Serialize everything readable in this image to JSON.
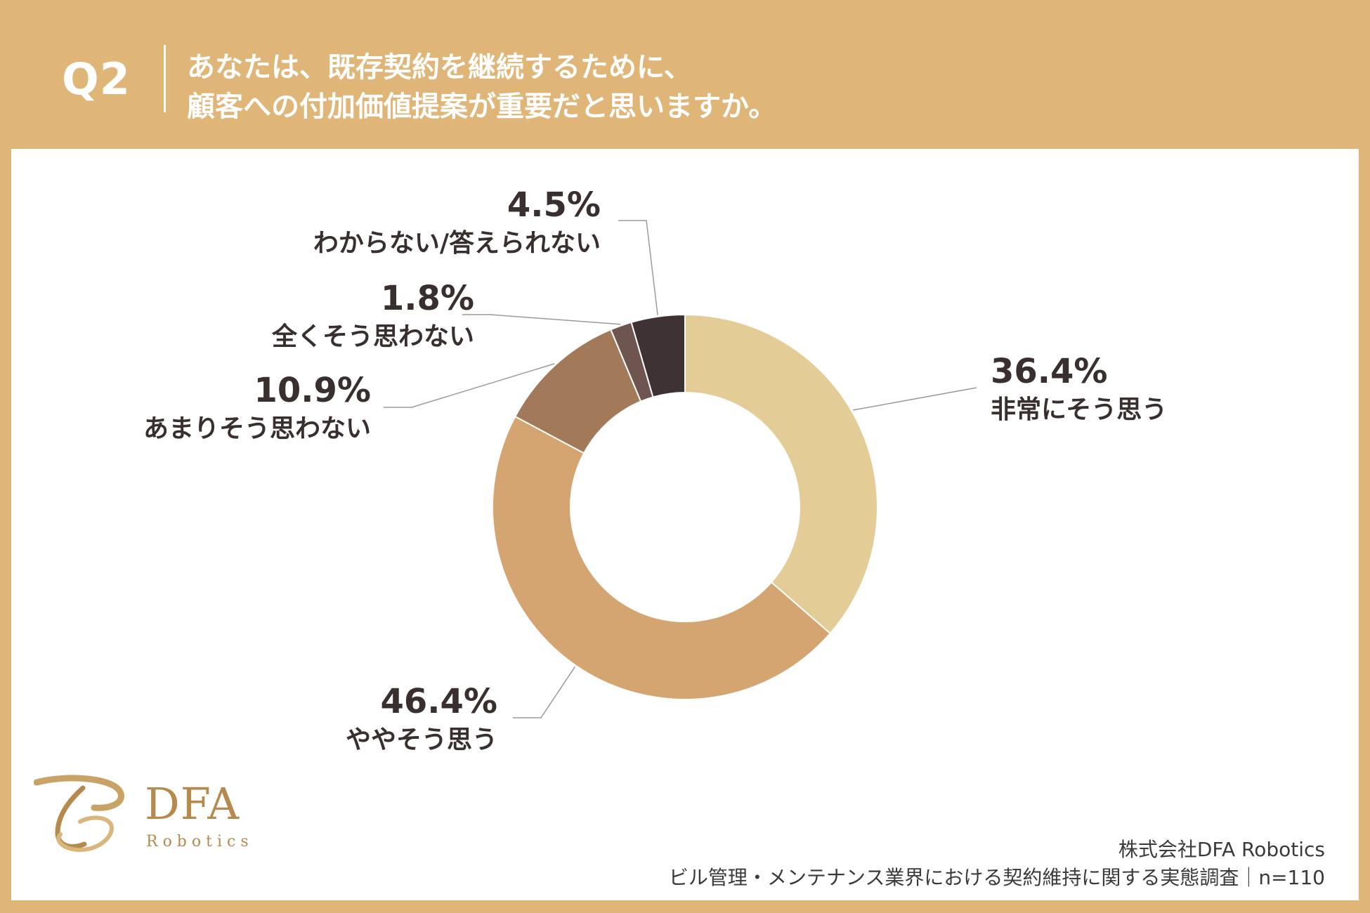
{
  "header": {
    "question_number": "Q2",
    "question_line1": "あなたは、既存契約を継続するために、",
    "question_line2": "顧客への付加価値提案が重要だと思いますか。"
  },
  "chart_data": {
    "type": "pie",
    "donut": true,
    "title": "",
    "slices": [
      {
        "label": "非常にそう思う",
        "value": 36.4,
        "display": "36.4%",
        "color": "#e3cc96"
      },
      {
        "label": "ややそう思う",
        "value": 46.4,
        "display": "46.4%",
        "color": "#d4a570"
      },
      {
        "label": "あまりそう思わない",
        "value": 10.9,
        "display": "10.9%",
        "color": "#a37a59"
      },
      {
        "label": "全くそう思わない",
        "value": 1.8,
        "display": "1.8%",
        "color": "#6f5550"
      },
      {
        "label": "わからない/答えられない",
        "value": 4.5,
        "display": "4.5%",
        "color": "#3e3234"
      }
    ],
    "legend": "none"
  },
  "logo": {
    "word": "DFA",
    "sub": "Robotics"
  },
  "source": {
    "company": "株式会社DFA Robotics",
    "survey": "ビル管理・メンテナンス業界における契約維持に関する実態調査｜n=110"
  }
}
